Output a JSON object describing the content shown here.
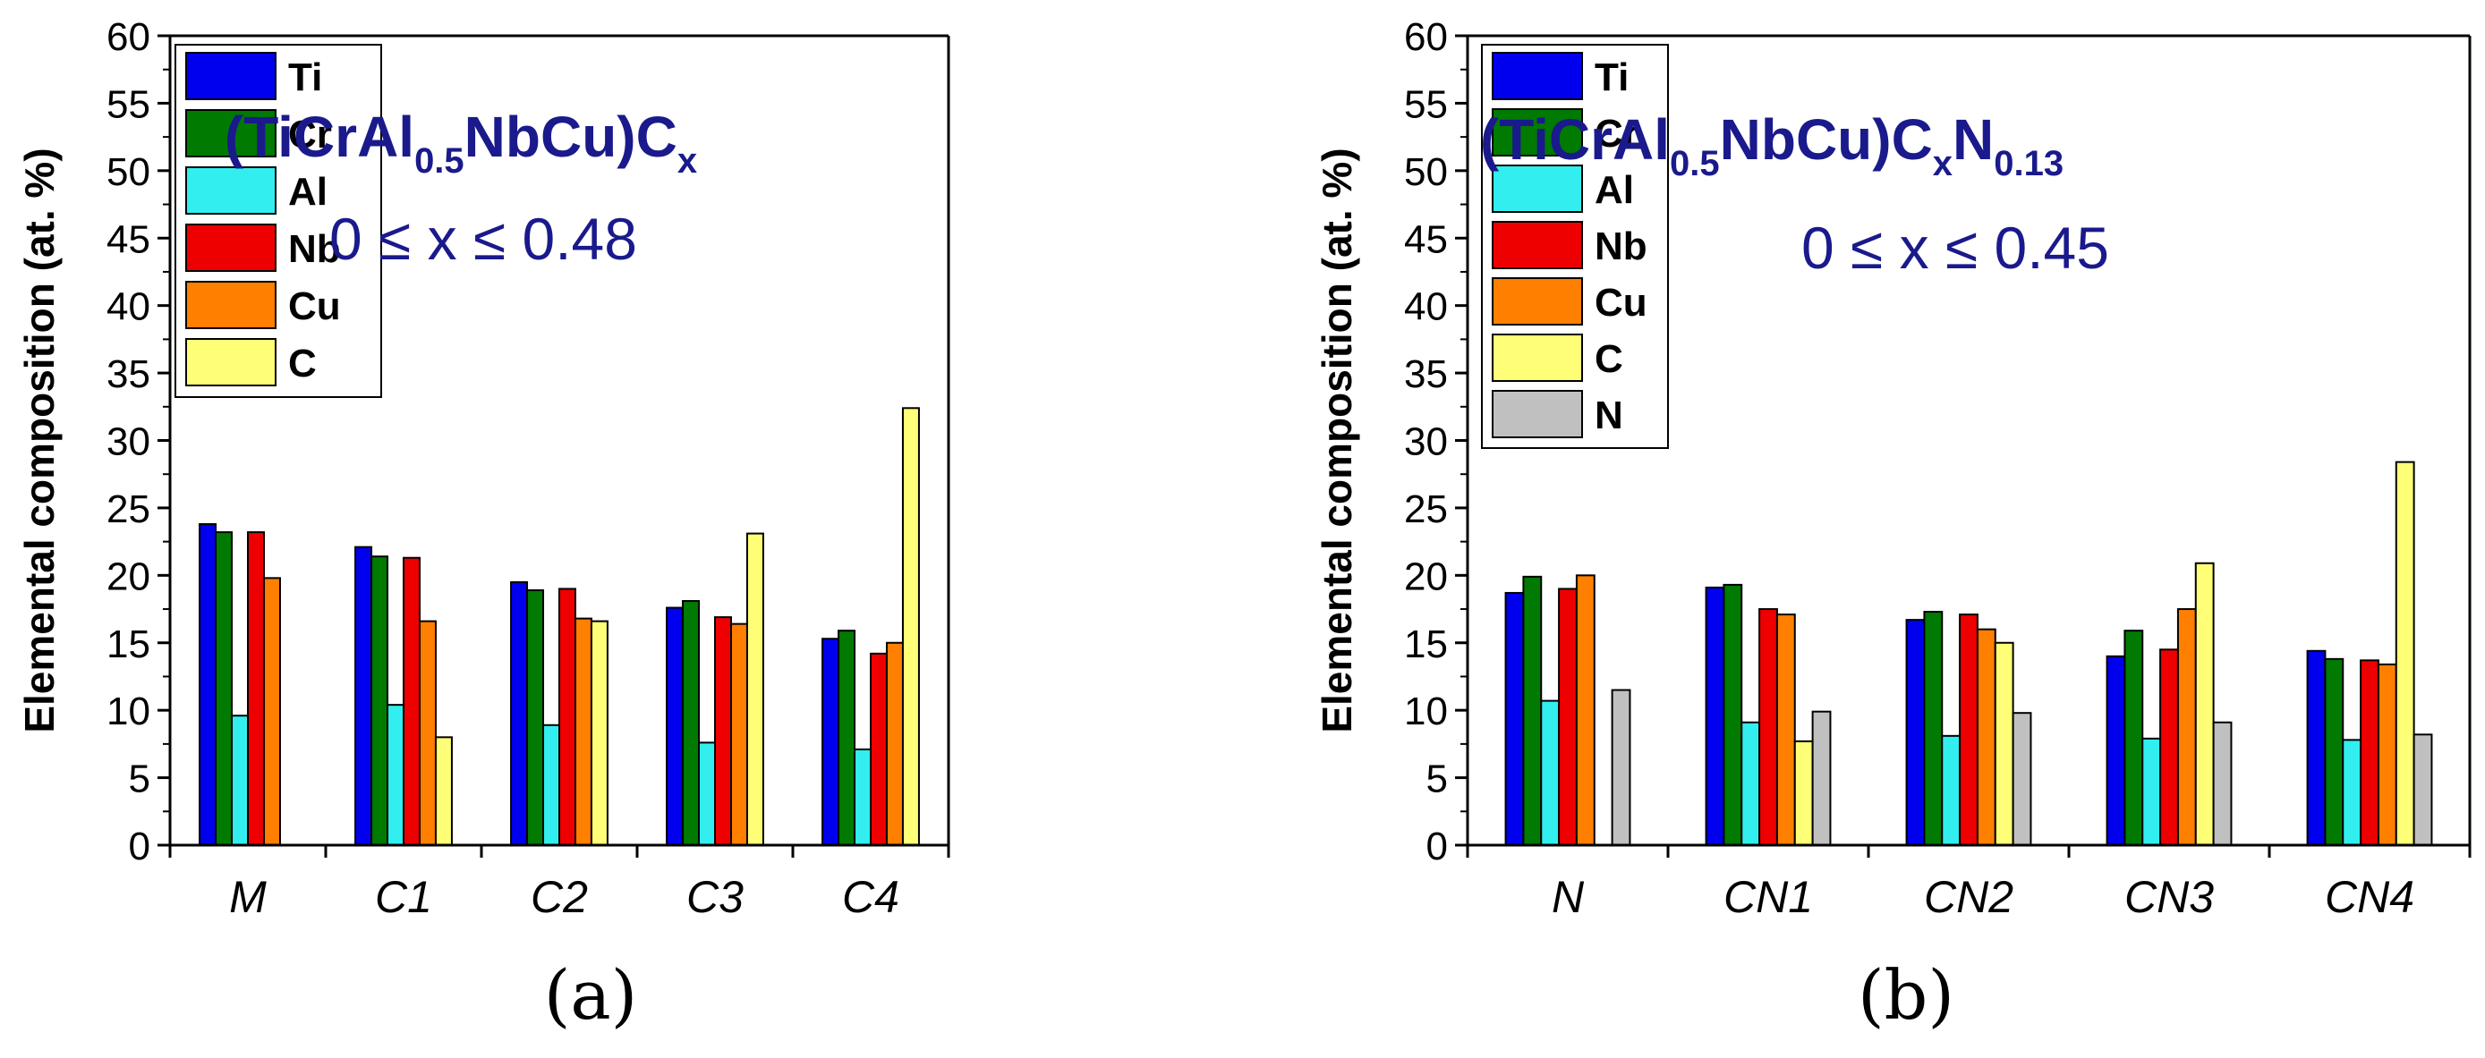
{
  "chart_data": [
    {
      "type": "bar",
      "panel": "(a)",
      "title": "(TiCrAl0.5NbCu)Cx",
      "title_parts": {
        "base": "(TiCrAl",
        "sub1": "0.5",
        "mid": "NbCu)C",
        "sub2": "x",
        "tail": "",
        "sub3": ""
      },
      "subtitle": "0 ≤ x ≤ 0.48",
      "ylabel": "Elemental composition (at. %)",
      "xlabel": "",
      "ylim": [
        0,
        60
      ],
      "yticks": [
        0,
        5,
        10,
        15,
        20,
        25,
        30,
        35,
        40,
        45,
        50,
        55,
        60
      ],
      "grid": false,
      "legend_position": "top-left",
      "categories": [
        "M",
        "C1",
        "C2",
        "C3",
        "C4"
      ],
      "series": [
        {
          "name": "Ti",
          "color": "#0000ee",
          "values": [
            23.8,
            22.1,
            19.5,
            17.6,
            15.3
          ]
        },
        {
          "name": "Cr",
          "color": "#007a00",
          "values": [
            23.2,
            21.4,
            18.9,
            18.1,
            15.9
          ]
        },
        {
          "name": "Al",
          "color": "#33eeee",
          "values": [
            9.6,
            10.4,
            8.9,
            7.6,
            7.1
          ]
        },
        {
          "name": "Nb",
          "color": "#ee0000",
          "values": [
            23.2,
            21.3,
            19.0,
            16.9,
            14.2
          ]
        },
        {
          "name": "Cu",
          "color": "#ff7f00",
          "values": [
            19.8,
            16.6,
            16.8,
            16.4,
            15.0
          ]
        },
        {
          "name": "C",
          "color": "#ffff77",
          "values": [
            0,
            8.0,
            16.6,
            23.1,
            32.4
          ]
        }
      ]
    },
    {
      "type": "bar",
      "panel": "(b)",
      "title": "(TiCrAl0.5NbCu)CxN0.13",
      "title_parts": {
        "base": "(TiCrAl",
        "sub1": "0.5",
        "mid": "NbCu)C",
        "sub2": "x",
        "tail": "N",
        "sub3": "0.13"
      },
      "subtitle": "0 ≤ x ≤ 0.45",
      "ylabel": "Elemental composition (at. %)",
      "xlabel": "",
      "ylim": [
        0,
        60
      ],
      "yticks": [
        0,
        5,
        10,
        15,
        20,
        25,
        30,
        35,
        40,
        45,
        50,
        55,
        60
      ],
      "grid": false,
      "legend_position": "top-left",
      "categories": [
        "N",
        "CN1",
        "CN2",
        "CN3",
        "CN4"
      ],
      "series": [
        {
          "name": "Ti",
          "color": "#0000ee",
          "values": [
            18.7,
            19.1,
            16.7,
            14.0,
            14.4
          ]
        },
        {
          "name": "Cr",
          "color": "#007a00",
          "values": [
            19.9,
            19.3,
            17.3,
            15.9,
            13.8
          ]
        },
        {
          "name": "Al",
          "color": "#33eeee",
          "values": [
            10.7,
            9.1,
            8.1,
            7.9,
            7.8
          ]
        },
        {
          "name": "Nb",
          "color": "#ee0000",
          "values": [
            19.0,
            17.5,
            17.1,
            14.5,
            13.7
          ]
        },
        {
          "name": "Cu",
          "color": "#ff7f00",
          "values": [
            20.0,
            17.1,
            16.0,
            17.5,
            13.4
          ]
        },
        {
          "name": "C",
          "color": "#ffff77",
          "values": [
            0,
            7.7,
            15.0,
            20.9,
            28.4
          ]
        },
        {
          "name": "N",
          "color": "#c0c0c0",
          "values": [
            11.5,
            9.9,
            9.8,
            9.1,
            8.2
          ]
        }
      ]
    }
  ]
}
